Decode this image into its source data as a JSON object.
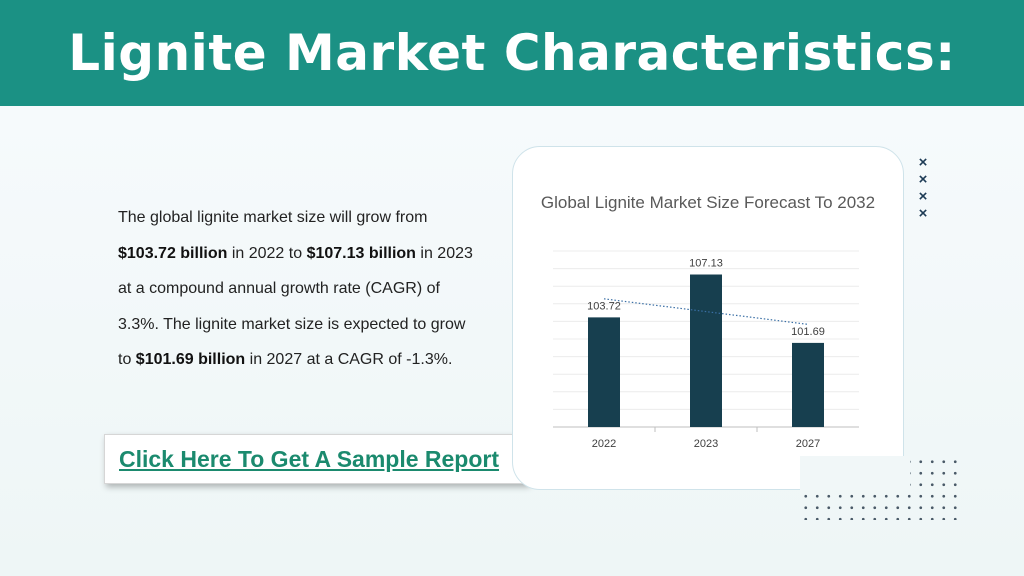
{
  "header": {
    "title": "Lignite Market Characteristics:"
  },
  "body": {
    "p1": "The global lignite market size will grow from ",
    "v1": "$103.72 billion",
    "p2": " in 2022 to ",
    "v2": "$107.13 billion",
    "p3": " in 2023 at a compound annual growth rate (CAGR) of 3.3%. The lignite market size is expected to grow to ",
    "v3": "$101.69 billion",
    "p4": " in 2027 at a CAGR of -1.3%."
  },
  "cta": {
    "label": "Click Here To Get A Sample Report"
  },
  "decor": {
    "x_icon": "×"
  },
  "colors": {
    "header": "#1b9184",
    "bar": "#173f4f",
    "link": "#1b8a6e",
    "trendline": "#3a6fa5"
  },
  "chart_data": {
    "type": "bar",
    "title": "Global Lignite Market Size Forecast To 2032",
    "categories": [
      "2022",
      "2023",
      "2027"
    ],
    "series": [
      {
        "values": [
          103.72,
          107.13,
          101.69
        ]
      }
    ],
    "data_labels": [
      "103.72",
      "107.13",
      "101.69"
    ],
    "ylim": [
      95,
      109
    ],
    "grid": true,
    "trendline": "linear, dotted",
    "legend": "none"
  }
}
